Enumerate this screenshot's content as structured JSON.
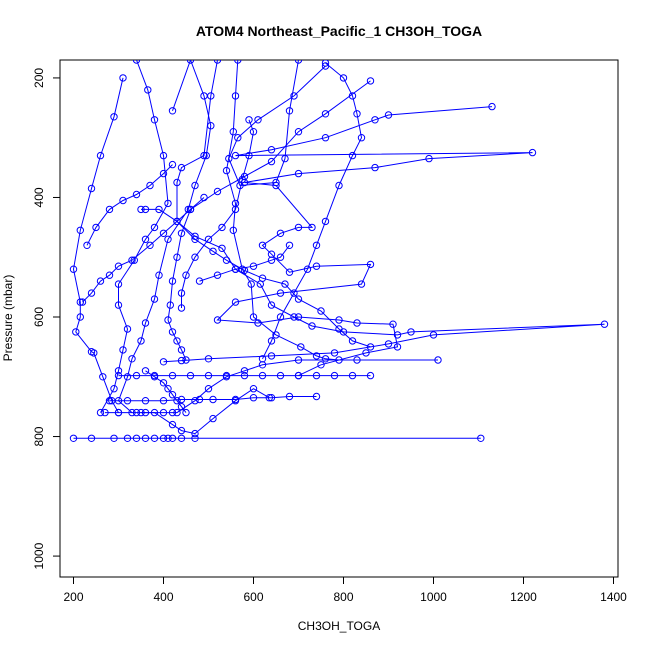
{
  "chart_data": {
    "type": "line",
    "title": "ATOM4 Northeast_Pacific_1 CH3OH_TOGA",
    "xlabel": "CH3OH_TOGA",
    "ylabel": "Pressure (mbar)",
    "xlim": [
      170,
      1410
    ],
    "ylim": [
      1035,
      170
    ],
    "y_reversed": true,
    "xticks": [
      200,
      400,
      600,
      800,
      1000,
      1200,
      1400
    ],
    "yticks": [
      200,
      400,
      600,
      800,
      1000
    ],
    "grid": false,
    "legend": "none",
    "series_color": "#0000ff",
    "marker": "open-circle",
    "series": [
      {
        "points": [
          [
            565,
            170
          ],
          [
            560,
            230
          ],
          [
            555,
            290
          ],
          [
            540,
            355
          ],
          [
            560,
            410
          ],
          [
            555,
            455
          ],
          [
            575,
            520
          ],
          [
            595,
            545
          ],
          [
            600,
            600
          ],
          [
            650,
            630
          ],
          [
            705,
            650
          ],
          [
            740,
            665
          ],
          [
            760,
            670
          ],
          [
            790,
            672
          ],
          [
            1010,
            672
          ]
        ]
      },
      {
        "points": [
          [
            700,
            170
          ],
          [
            680,
            255
          ],
          [
            670,
            335
          ],
          [
            650,
            375
          ],
          [
            570,
            380
          ],
          [
            545,
            335
          ],
          [
            565,
            300
          ],
          [
            610,
            270
          ],
          [
            690,
            230
          ],
          [
            760,
            180
          ]
        ]
      },
      {
        "points": [
          [
            520,
            170
          ],
          [
            505,
            230
          ],
          [
            490,
            330
          ],
          [
            440,
            350
          ],
          [
            430,
            375
          ],
          [
            430,
            440
          ],
          [
            470,
            465
          ],
          [
            530,
            485
          ],
          [
            560,
            520
          ],
          [
            615,
            545
          ],
          [
            640,
            580
          ],
          [
            690,
            600
          ],
          [
            730,
            615
          ],
          [
            800,
            625
          ],
          [
            920,
            630
          ],
          [
            950,
            625
          ],
          [
            1380,
            612
          ],
          [
            1000,
            630
          ],
          [
            900,
            645
          ],
          [
            780,
            660
          ],
          [
            640,
            665
          ],
          [
            500,
            670
          ],
          [
            440,
            673
          ],
          [
            400,
            675
          ]
        ]
      },
      {
        "points": [
          [
            310,
            200
          ],
          [
            290,
            265
          ],
          [
            260,
            330
          ],
          [
            240,
            385
          ],
          [
            215,
            455
          ],
          [
            200,
            520
          ],
          [
            215,
            575
          ],
          [
            215,
            600
          ],
          [
            205,
            625
          ],
          [
            240,
            658
          ],
          [
            245,
            660
          ],
          [
            265,
            700
          ],
          [
            285,
            740
          ],
          [
            300,
            760
          ]
        ]
      },
      {
        "points": [
          [
            420,
            255
          ],
          [
            460,
            170
          ],
          [
            490,
            230
          ],
          [
            505,
            280
          ],
          [
            495,
            330
          ],
          [
            470,
            380
          ],
          [
            455,
            420
          ],
          [
            410,
            470
          ],
          [
            390,
            530
          ],
          [
            380,
            570
          ],
          [
            360,
            610
          ],
          [
            350,
            640
          ],
          [
            330,
            670
          ],
          [
            320,
            700
          ],
          [
            300,
            740
          ],
          [
            330,
            760
          ]
        ]
      },
      {
        "points": [
          [
            340,
            170
          ],
          [
            365,
            220
          ],
          [
            380,
            270
          ],
          [
            400,
            330
          ],
          [
            410,
            410
          ],
          [
            380,
            450
          ],
          [
            360,
            470
          ],
          [
            335,
            505
          ],
          [
            300,
            545
          ],
          [
            300,
            580
          ],
          [
            320,
            620
          ],
          [
            310,
            655
          ],
          [
            300,
            690
          ],
          [
            290,
            720
          ],
          [
            260,
            760
          ]
        ]
      },
      {
        "points": [
          [
            1130,
            248
          ],
          [
            900,
            262
          ],
          [
            870,
            270
          ],
          [
            760,
            300
          ],
          [
            640,
            320
          ],
          [
            560,
            330
          ],
          [
            1220,
            325
          ],
          [
            990,
            335
          ],
          [
            870,
            350
          ],
          [
            700,
            360
          ],
          [
            580,
            375
          ],
          [
            650,
            380
          ],
          [
            730,
            450
          ],
          [
            700,
            450
          ],
          [
            660,
            460
          ],
          [
            620,
            480
          ],
          [
            640,
            495
          ],
          [
            680,
            525
          ],
          [
            740,
            515
          ],
          [
            860,
            512
          ],
          [
            840,
            545
          ],
          [
            660,
            560
          ],
          [
            560,
            575
          ],
          [
            520,
            605
          ],
          [
            610,
            610
          ],
          [
            700,
            600
          ],
          [
            790,
            605
          ],
          [
            830,
            610
          ],
          [
            910,
            612
          ],
          [
            920,
            650
          ],
          [
            850,
            660
          ],
          [
            750,
            680
          ],
          [
            700,
            698
          ]
        ]
      },
      {
        "points": [
          [
            860,
            205
          ],
          [
            760,
            260
          ],
          [
            700,
            290
          ],
          [
            640,
            340
          ],
          [
            580,
            365
          ],
          [
            520,
            390
          ],
          [
            460,
            420
          ],
          [
            440,
            460
          ],
          [
            430,
            500
          ],
          [
            420,
            540
          ],
          [
            415,
            580
          ],
          [
            410,
            605
          ],
          [
            420,
            625
          ],
          [
            430,
            640
          ],
          [
            440,
            655
          ],
          [
            450,
            672
          ]
        ]
      },
      {
        "points": [
          [
            350,
            420
          ],
          [
            360,
            420
          ],
          [
            390,
            420
          ],
          [
            430,
            440
          ],
          [
            470,
            470
          ],
          [
            510,
            490
          ],
          [
            540,
            505
          ],
          [
            580,
            522
          ],
          [
            620,
            535
          ],
          [
            670,
            545
          ],
          [
            700,
            570
          ],
          [
            750,
            590
          ],
          [
            790,
            620
          ],
          [
            820,
            640
          ],
          [
            860,
            650
          ]
        ]
      },
      {
        "points": [
          [
            280,
            740
          ],
          [
            320,
            740
          ],
          [
            360,
            740
          ],
          [
            400,
            740
          ],
          [
            440,
            738
          ],
          [
            480,
            738
          ],
          [
            510,
            738
          ],
          [
            560,
            738
          ],
          [
            600,
            735
          ],
          [
            640,
            735
          ],
          [
            680,
            733
          ],
          [
            740,
            733
          ]
        ]
      },
      {
        "points": [
          [
            300,
            698
          ],
          [
            340,
            698
          ],
          [
            380,
            698
          ],
          [
            420,
            698
          ],
          [
            460,
            698
          ],
          [
            500,
            698
          ],
          [
            540,
            698
          ],
          [
            580,
            698
          ],
          [
            620,
            698
          ],
          [
            660,
            698
          ],
          [
            700,
            698
          ],
          [
            740,
            698
          ],
          [
            780,
            698
          ],
          [
            820,
            698
          ],
          [
            860,
            698
          ]
        ]
      },
      {
        "points": [
          [
            200,
            803
          ],
          [
            240,
            803
          ],
          [
            290,
            803
          ],
          [
            320,
            803
          ],
          [
            340,
            803
          ],
          [
            360,
            803
          ],
          [
            380,
            803
          ],
          [
            400,
            803
          ],
          [
            410,
            803
          ],
          [
            420,
            803
          ],
          [
            440,
            803
          ],
          [
            470,
            803
          ],
          [
            1105,
            803
          ]
        ]
      },
      {
        "points": [
          [
            270,
            760
          ],
          [
            300,
            760
          ],
          [
            340,
            760
          ],
          [
            360,
            760
          ],
          [
            400,
            760
          ],
          [
            420,
            760
          ],
          [
            430,
            760
          ],
          [
            470,
            740
          ],
          [
            500,
            720
          ],
          [
            540,
            700
          ],
          [
            580,
            690
          ],
          [
            620,
            680
          ],
          [
            700,
            672
          ],
          [
            830,
            672
          ]
        ]
      },
      {
        "points": [
          [
            220,
            575
          ],
          [
            240,
            560
          ],
          [
            260,
            540
          ],
          [
            280,
            530
          ],
          [
            300,
            515
          ],
          [
            330,
            505
          ],
          [
            370,
            480
          ],
          [
            400,
            460
          ],
          [
            430,
            440
          ],
          [
            460,
            420
          ],
          [
            490,
            400
          ]
        ]
      },
      {
        "points": [
          [
            350,
            760
          ],
          [
            380,
            760
          ],
          [
            420,
            780
          ],
          [
            440,
            790
          ],
          [
            470,
            795
          ],
          [
            510,
            770
          ],
          [
            560,
            740
          ],
          [
            600,
            720
          ],
          [
            635,
            735
          ]
        ]
      },
      {
        "points": [
          [
            230,
            480
          ],
          [
            250,
            450
          ],
          [
            280,
            420
          ],
          [
            310,
            405
          ],
          [
            340,
            395
          ],
          [
            370,
            380
          ],
          [
            400,
            360
          ],
          [
            420,
            345
          ]
        ]
      },
      {
        "points": [
          [
            360,
            690
          ],
          [
            380,
            700
          ],
          [
            400,
            710
          ],
          [
            410,
            720
          ],
          [
            420,
            730
          ],
          [
            430,
            740
          ],
          [
            440,
            750
          ],
          [
            450,
            760
          ]
        ]
      },
      {
        "points": [
          [
            590,
            270
          ],
          [
            600,
            290
          ],
          [
            590,
            330
          ],
          [
            575,
            370
          ],
          [
            560,
            420
          ],
          [
            530,
            450
          ],
          [
            500,
            470
          ],
          [
            470,
            500
          ],
          [
            450,
            530
          ],
          [
            440,
            560
          ],
          [
            440,
            585
          ]
        ]
      },
      {
        "points": [
          [
            760,
            175
          ],
          [
            800,
            200
          ],
          [
            820,
            230
          ],
          [
            830,
            260
          ],
          [
            840,
            300
          ],
          [
            820,
            330
          ],
          [
            790,
            380
          ],
          [
            760,
            440
          ],
          [
            740,
            480
          ],
          [
            720,
            520
          ],
          [
            690,
            560
          ],
          [
            660,
            600
          ],
          [
            640,
            640
          ],
          [
            620,
            670
          ]
        ]
      },
      {
        "points": [
          [
            480,
            540
          ],
          [
            520,
            530
          ],
          [
            560,
            520
          ],
          [
            600,
            515
          ],
          [
            640,
            505
          ],
          [
            660,
            500
          ],
          [
            680,
            480
          ]
        ]
      }
    ]
  }
}
